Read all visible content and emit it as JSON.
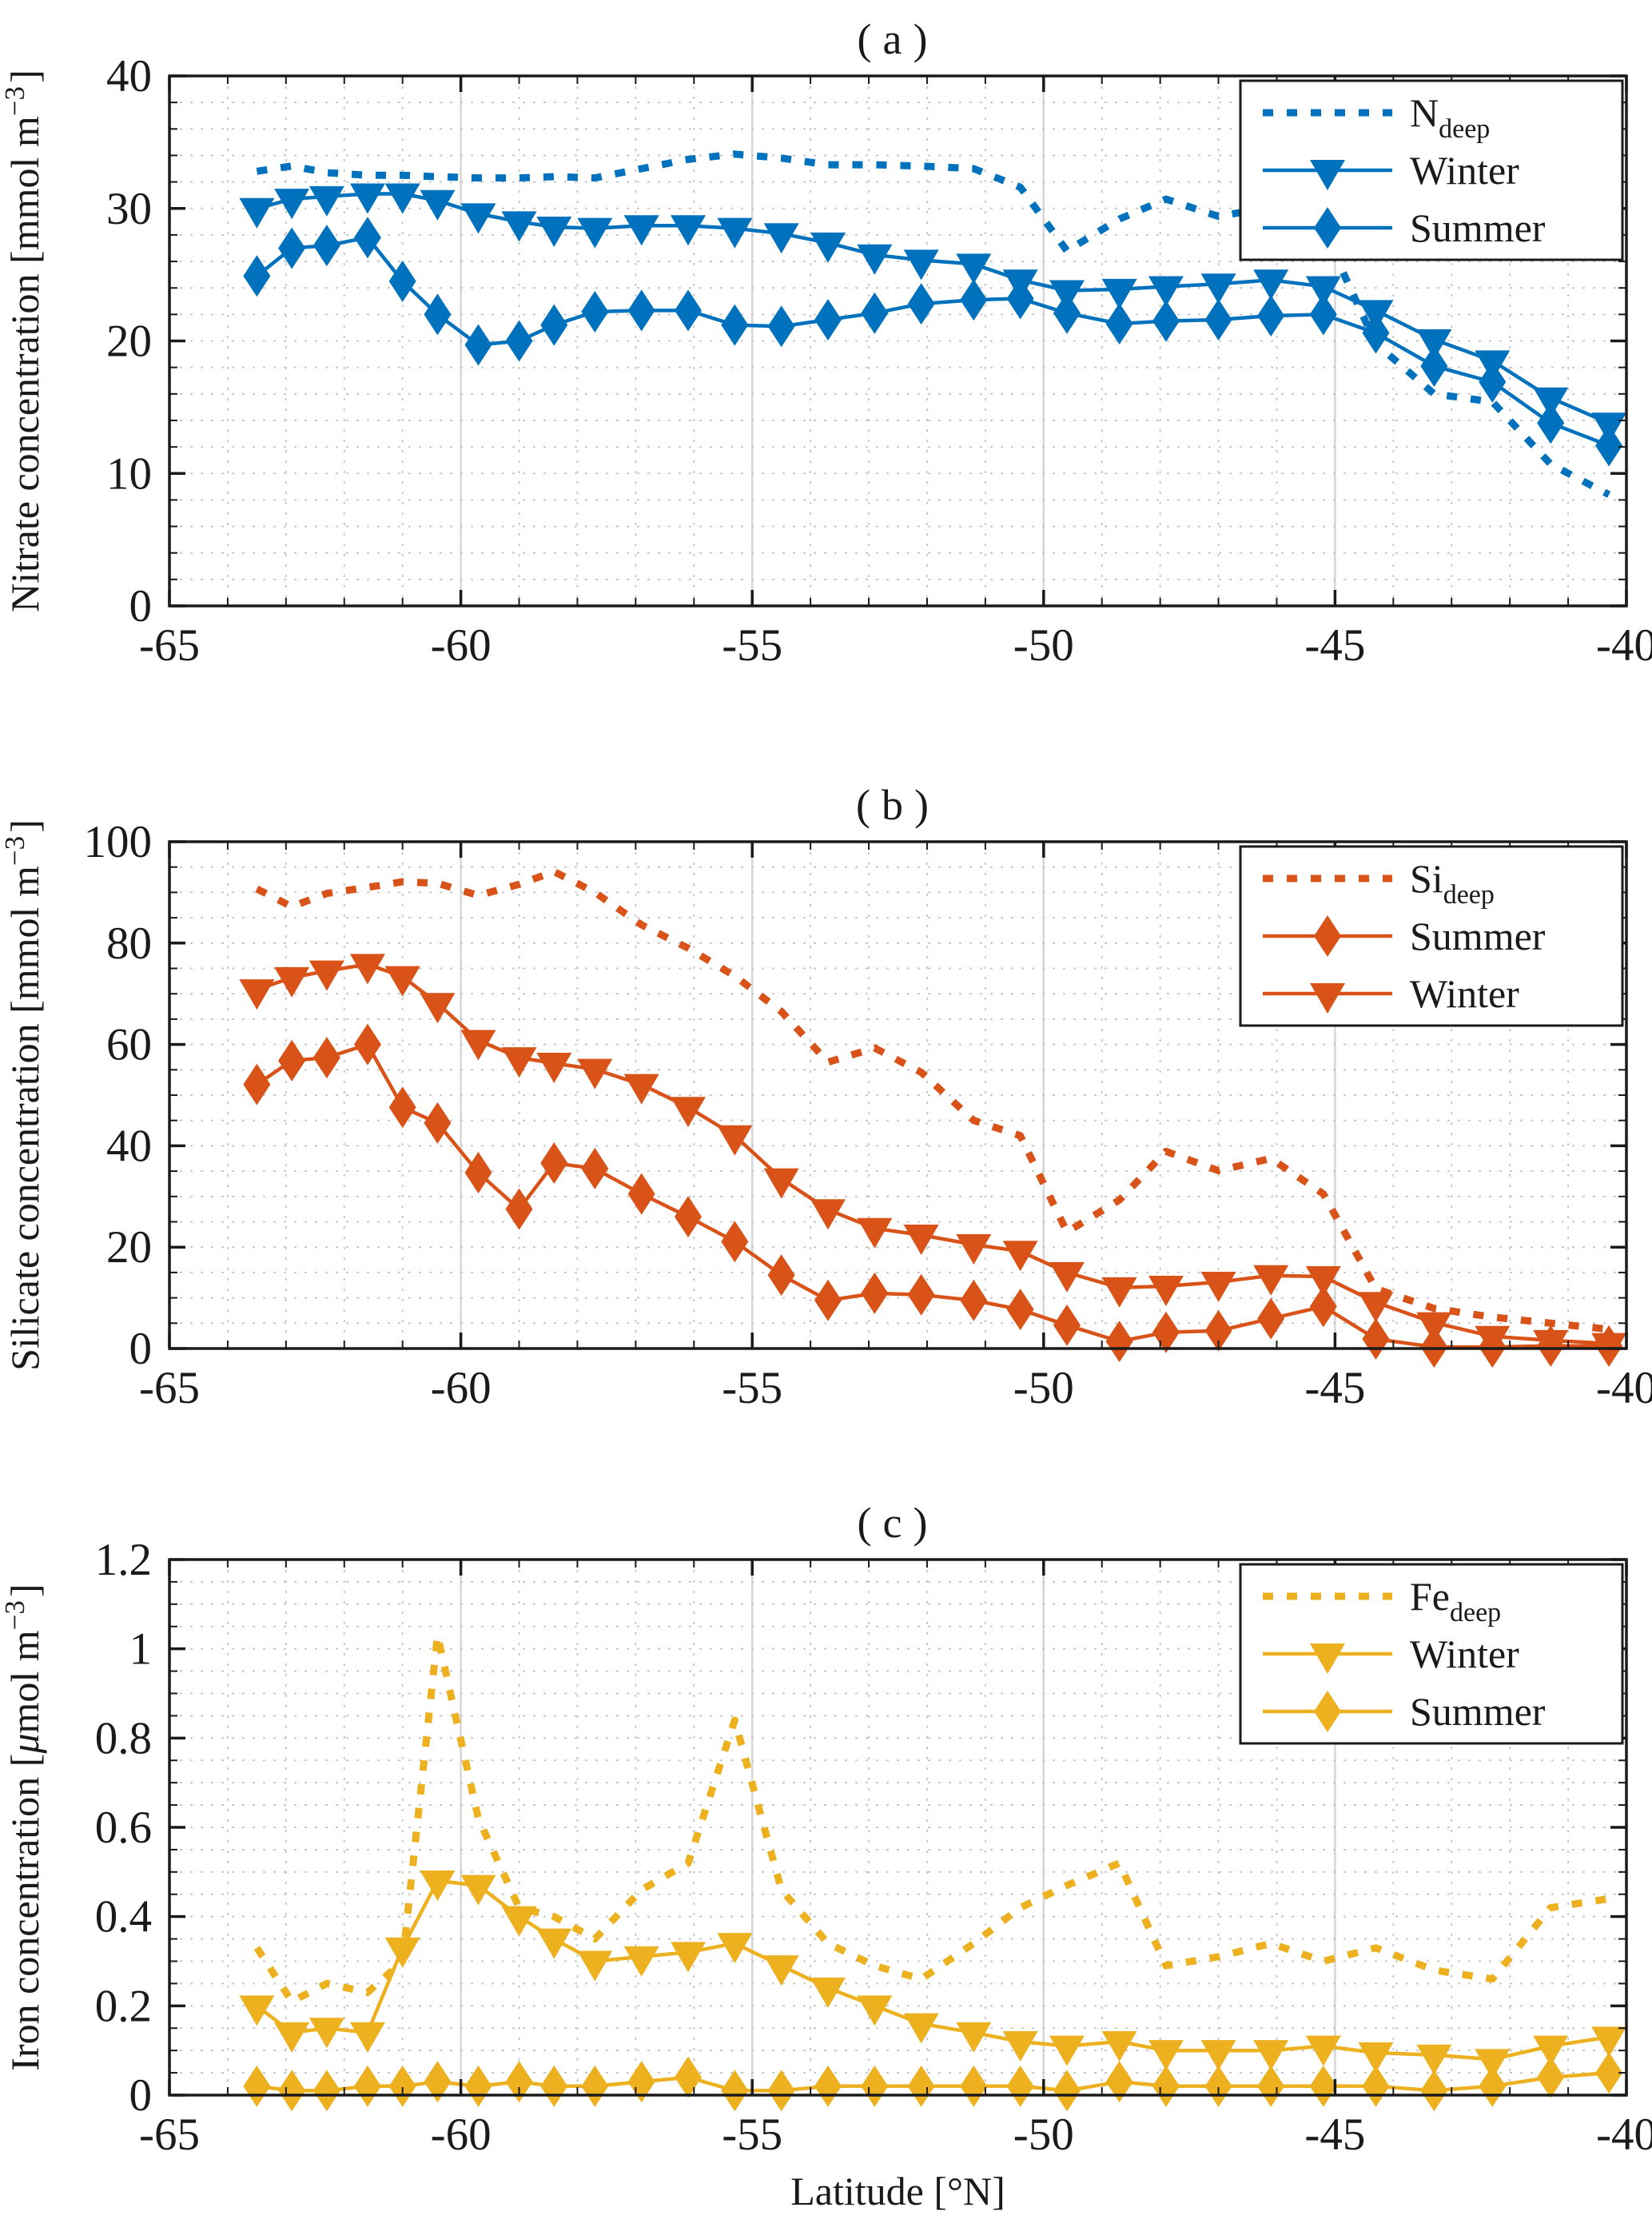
{
  "figure": {
    "x_axis_label": "Latitude [°N]",
    "background": "#ffffff",
    "axis_color": "#1a1a1a"
  },
  "chart_data": {
    "type": "line",
    "x_label": "Latitude [°N]",
    "x_range": [
      -65,
      -40
    ],
    "x_major_ticks": [
      -65,
      -60,
      -55,
      -50,
      -45,
      -40
    ],
    "x_tick_labels": [
      "-65",
      "-60",
      "-55",
      "-50",
      "-45",
      "-40"
    ],
    "x_minor_step": 1,
    "grid": true,
    "x": [
      -63.5,
      -62.9,
      -62.3,
      -61.6,
      -61.0,
      -60.4,
      -59.7,
      -59.0,
      -58.4,
      -57.7,
      -56.9,
      -56.1,
      -55.3,
      -54.5,
      -53.7,
      -52.9,
      -52.1,
      -51.2,
      -50.4,
      -49.6,
      -48.7,
      -47.9,
      -47.0,
      -46.1,
      -45.2,
      -44.3,
      -43.3,
      -42.3,
      -41.3,
      -40.3
    ],
    "charts": [
      {
        "id": "a",
        "title": "(a)",
        "ylabel_segments": [
          {
            "t": "Nitrate concentration [mmol m"
          },
          {
            "t": "−3",
            "sup": true
          },
          {
            "t": "]"
          }
        ],
        "ylim": [
          0,
          40
        ],
        "y_major_ticks": [
          0,
          10,
          20,
          30,
          40
        ],
        "y_minor_step": 2,
        "color": "#0072BD",
        "legend_position": "top-right",
        "series": [
          {
            "name": "N_deep",
            "legend_segments": [
              {
                "t": "N"
              },
              {
                "t": "deep",
                "sub": true
              }
            ],
            "style": "dotted",
            "marker": "none",
            "values": [
              32.8,
              33.2,
              32.7,
              32.5,
              32.5,
              32.4,
              32.3,
              32.3,
              32.4,
              32.3,
              33.0,
              33.7,
              34.1,
              33.8,
              33.3,
              33.3,
              33.2,
              33.0,
              31.6,
              26.8,
              29.2,
              30.7,
              29.4,
              30.1,
              28.4,
              19.8,
              16.0,
              15.4,
              10.7,
              8.4
            ]
          },
          {
            "name": "Winter",
            "legend_segments": [
              {
                "t": "Winter"
              }
            ],
            "style": "solid",
            "marker": "triangle",
            "values": [
              30.0,
              30.7,
              30.9,
              31.1,
              31.1,
              30.6,
              29.6,
              29.0,
              28.6,
              28.5,
              28.7,
              28.7,
              28.5,
              28.1,
              27.4,
              26.5,
              26.1,
              25.8,
              24.6,
              23.8,
              23.9,
              24.1,
              24.3,
              24.6,
              24.1,
              22.3,
              20.1,
              18.5,
              15.7,
              13.8
            ]
          },
          {
            "name": "Summer",
            "legend_segments": [
              {
                "t": "Summer"
              }
            ],
            "style": "solid",
            "marker": "diamond",
            "values": [
              24.9,
              27.0,
              27.2,
              27.8,
              24.5,
              22.0,
              19.7,
              20.0,
              21.2,
              22.2,
              22.3,
              22.3,
              21.2,
              21.1,
              21.6,
              22.1,
              22.8,
              23.1,
              23.2,
              22.1,
              21.3,
              21.5,
              21.6,
              21.9,
              22.0,
              20.6,
              18.1,
              16.9,
              13.8,
              12.1
            ]
          }
        ]
      },
      {
        "id": "b",
        "title": "(b)",
        "ylabel_segments": [
          {
            "t": "Silicate concentration [mmol m"
          },
          {
            "t": "−3",
            "sup": true
          },
          {
            "t": "]"
          }
        ],
        "ylim": [
          0,
          100
        ],
        "y_major_ticks": [
          0,
          20,
          40,
          60,
          80,
          100
        ],
        "y_minor_step": 5,
        "color": "#D95319",
        "legend_position": "top-right",
        "series": [
          {
            "name": "Si_deep",
            "legend_segments": [
              {
                "t": "Si"
              },
              {
                "t": "deep",
                "sub": true
              }
            ],
            "style": "dotted",
            "marker": "none",
            "values": [
              90.7,
              87.2,
              89.8,
              91.0,
              92.1,
              91.8,
              89.4,
              91.6,
              94.1,
              90.0,
              83.6,
              79.0,
              73.5,
              66.5,
              56.5,
              59.3,
              54.5,
              45.0,
              42.0,
              23.0,
              29.3,
              38.9,
              35.1,
              37.5,
              30.5,
              11.8,
              7.9,
              6.2,
              5.0,
              3.8
            ]
          },
          {
            "name": "Summer",
            "legend_segments": [
              {
                "t": "Summer"
              }
            ],
            "style": "solid",
            "marker": "diamond",
            "values": [
              52.1,
              56.8,
              57.4,
              60.0,
              47.6,
              44.5,
              34.7,
              27.5,
              36.6,
              35.5,
              30.5,
              26.0,
              21.1,
              14.5,
              9.5,
              10.9,
              10.6,
              9.5,
              7.7,
              4.6,
              1.4,
              3.2,
              3.5,
              5.9,
              8.3,
              1.9,
              0.3,
              0.3,
              0.5,
              0.5
            ]
          },
          {
            "name": "Winter",
            "legend_segments": [
              {
                "t": "Winter"
              }
            ],
            "style": "solid",
            "marker": "triangle",
            "values": [
              70.8,
              73.2,
              74.5,
              75.8,
              73.4,
              68.1,
              60.8,
              57.4,
              56.3,
              55.1,
              52.1,
              47.6,
              42.0,
              33.5,
              27.4,
              23.7,
              22.4,
              20.5,
              19.2,
              15.0,
              12.0,
              12.3,
              13.1,
              14.4,
              14.2,
              9.1,
              5.1,
              2.4,
              1.6,
              1.0
            ]
          }
        ]
      },
      {
        "id": "c",
        "title": "(c)",
        "ylabel_segments": [
          {
            "t": "Iron concentration ["
          },
          {
            "t": "μ",
            "italic": true
          },
          {
            "t": "mol m"
          },
          {
            "t": "−3",
            "sup": true
          },
          {
            "t": "]"
          }
        ],
        "ylim": [
          0,
          1.2
        ],
        "y_major_ticks": [
          0,
          0.2,
          0.4,
          0.6,
          0.8,
          1,
          1.2
        ],
        "y_minor_step": 0.05,
        "color": "#EDB120",
        "legend_position": "top-right",
        "series": [
          {
            "name": "Fe_deep",
            "legend_segments": [
              {
                "t": "Fe"
              },
              {
                "t": "deep",
                "sub": true
              }
            ],
            "style": "dotted",
            "marker": "none",
            "values": [
              0.33,
              0.21,
              0.25,
              0.23,
              0.3,
              1.03,
              0.62,
              0.42,
              0.4,
              0.35,
              0.46,
              0.52,
              0.84,
              0.46,
              0.34,
              0.29,
              0.26,
              0.34,
              0.42,
              0.47,
              0.52,
              0.29,
              0.31,
              0.34,
              0.3,
              0.33,
              0.28,
              0.26,
              0.42,
              0.44
            ]
          },
          {
            "name": "Winter",
            "legend_segments": [
              {
                "t": "Winter"
              }
            ],
            "style": "solid",
            "marker": "triangle",
            "values": [
              0.2,
              0.14,
              0.15,
              0.14,
              0.33,
              0.48,
              0.47,
              0.4,
              0.35,
              0.3,
              0.31,
              0.32,
              0.34,
              0.29,
              0.24,
              0.2,
              0.16,
              0.14,
              0.12,
              0.11,
              0.12,
              0.1,
              0.1,
              0.1,
              0.11,
              0.095,
              0.09,
              0.08,
              0.11,
              0.13
            ]
          },
          {
            "name": "Summer",
            "legend_segments": [
              {
                "t": "Summer"
              }
            ],
            "style": "solid",
            "marker": "diamond",
            "values": [
              0.02,
              0.01,
              0.01,
              0.02,
              0.02,
              0.03,
              0.02,
              0.03,
              0.02,
              0.02,
              0.03,
              0.04,
              0.01,
              0.01,
              0.02,
              0.02,
              0.02,
              0.02,
              0.02,
              0.01,
              0.03,
              0.02,
              0.02,
              0.02,
              0.02,
              0.02,
              0.01,
              0.02,
              0.04,
              0.05
            ]
          }
        ]
      }
    ]
  }
}
